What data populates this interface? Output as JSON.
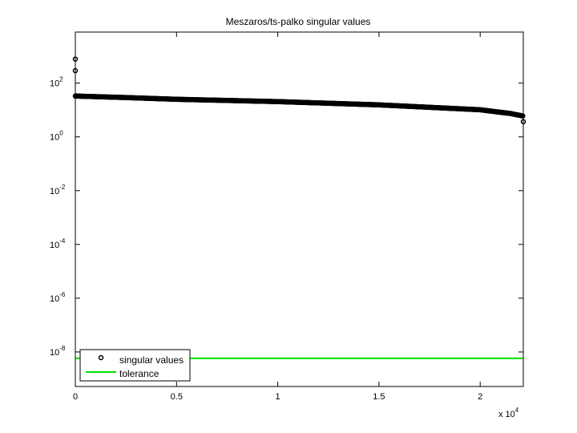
{
  "chart_data": {
    "type": "scatter",
    "title": "Meszaros/ts-palko singular values",
    "xlabel": "",
    "ylabel": "",
    "x_multiplier_label": "x 10",
    "x_multiplier_exp": "4",
    "xlim": [
      0,
      22130
    ],
    "ylim": [
      5.2e-10,
      7900.0
    ],
    "yscale": "log",
    "grid": false,
    "legend_placement": "bottom-left",
    "x_ticks": [
      {
        "value": 0,
        "label": "0"
      },
      {
        "value": 5000,
        "label": "0.5"
      },
      {
        "value": 10000,
        "label": "1"
      },
      {
        "value": 15000,
        "label": "1.5"
      },
      {
        "value": 20000,
        "label": "2"
      }
    ],
    "y_ticks": [
      {
        "value": 100.0,
        "base": "10",
        "exp": "2"
      },
      {
        "value": 1.0,
        "base": "10",
        "exp": "0"
      },
      {
        "value": 0.01,
        "base": "10",
        "exp": "-2"
      },
      {
        "value": 0.0001,
        "base": "10",
        "exp": "-4"
      },
      {
        "value": 1e-06,
        "base": "10",
        "exp": "-6"
      },
      {
        "value": 1e-08,
        "base": "10",
        "exp": "-8"
      }
    ],
    "series": [
      {
        "name": "singular values",
        "marker": "circle",
        "color": "#000000",
        "points": [
          [
            0,
            780
          ],
          [
            0,
            290
          ],
          [
            0,
            33
          ],
          [
            2500,
            29
          ],
          [
            5000,
            25
          ],
          [
            10000,
            20.5
          ],
          [
            15000,
            15.5
          ],
          [
            20000,
            10.2
          ],
          [
            21500,
            7.4
          ],
          [
            22100,
            6.0
          ],
          [
            22130,
            3.7
          ]
        ]
      },
      {
        "name": "tolerance",
        "type": "line",
        "color": "#00e000",
        "y": 5.8e-09
      }
    ]
  }
}
